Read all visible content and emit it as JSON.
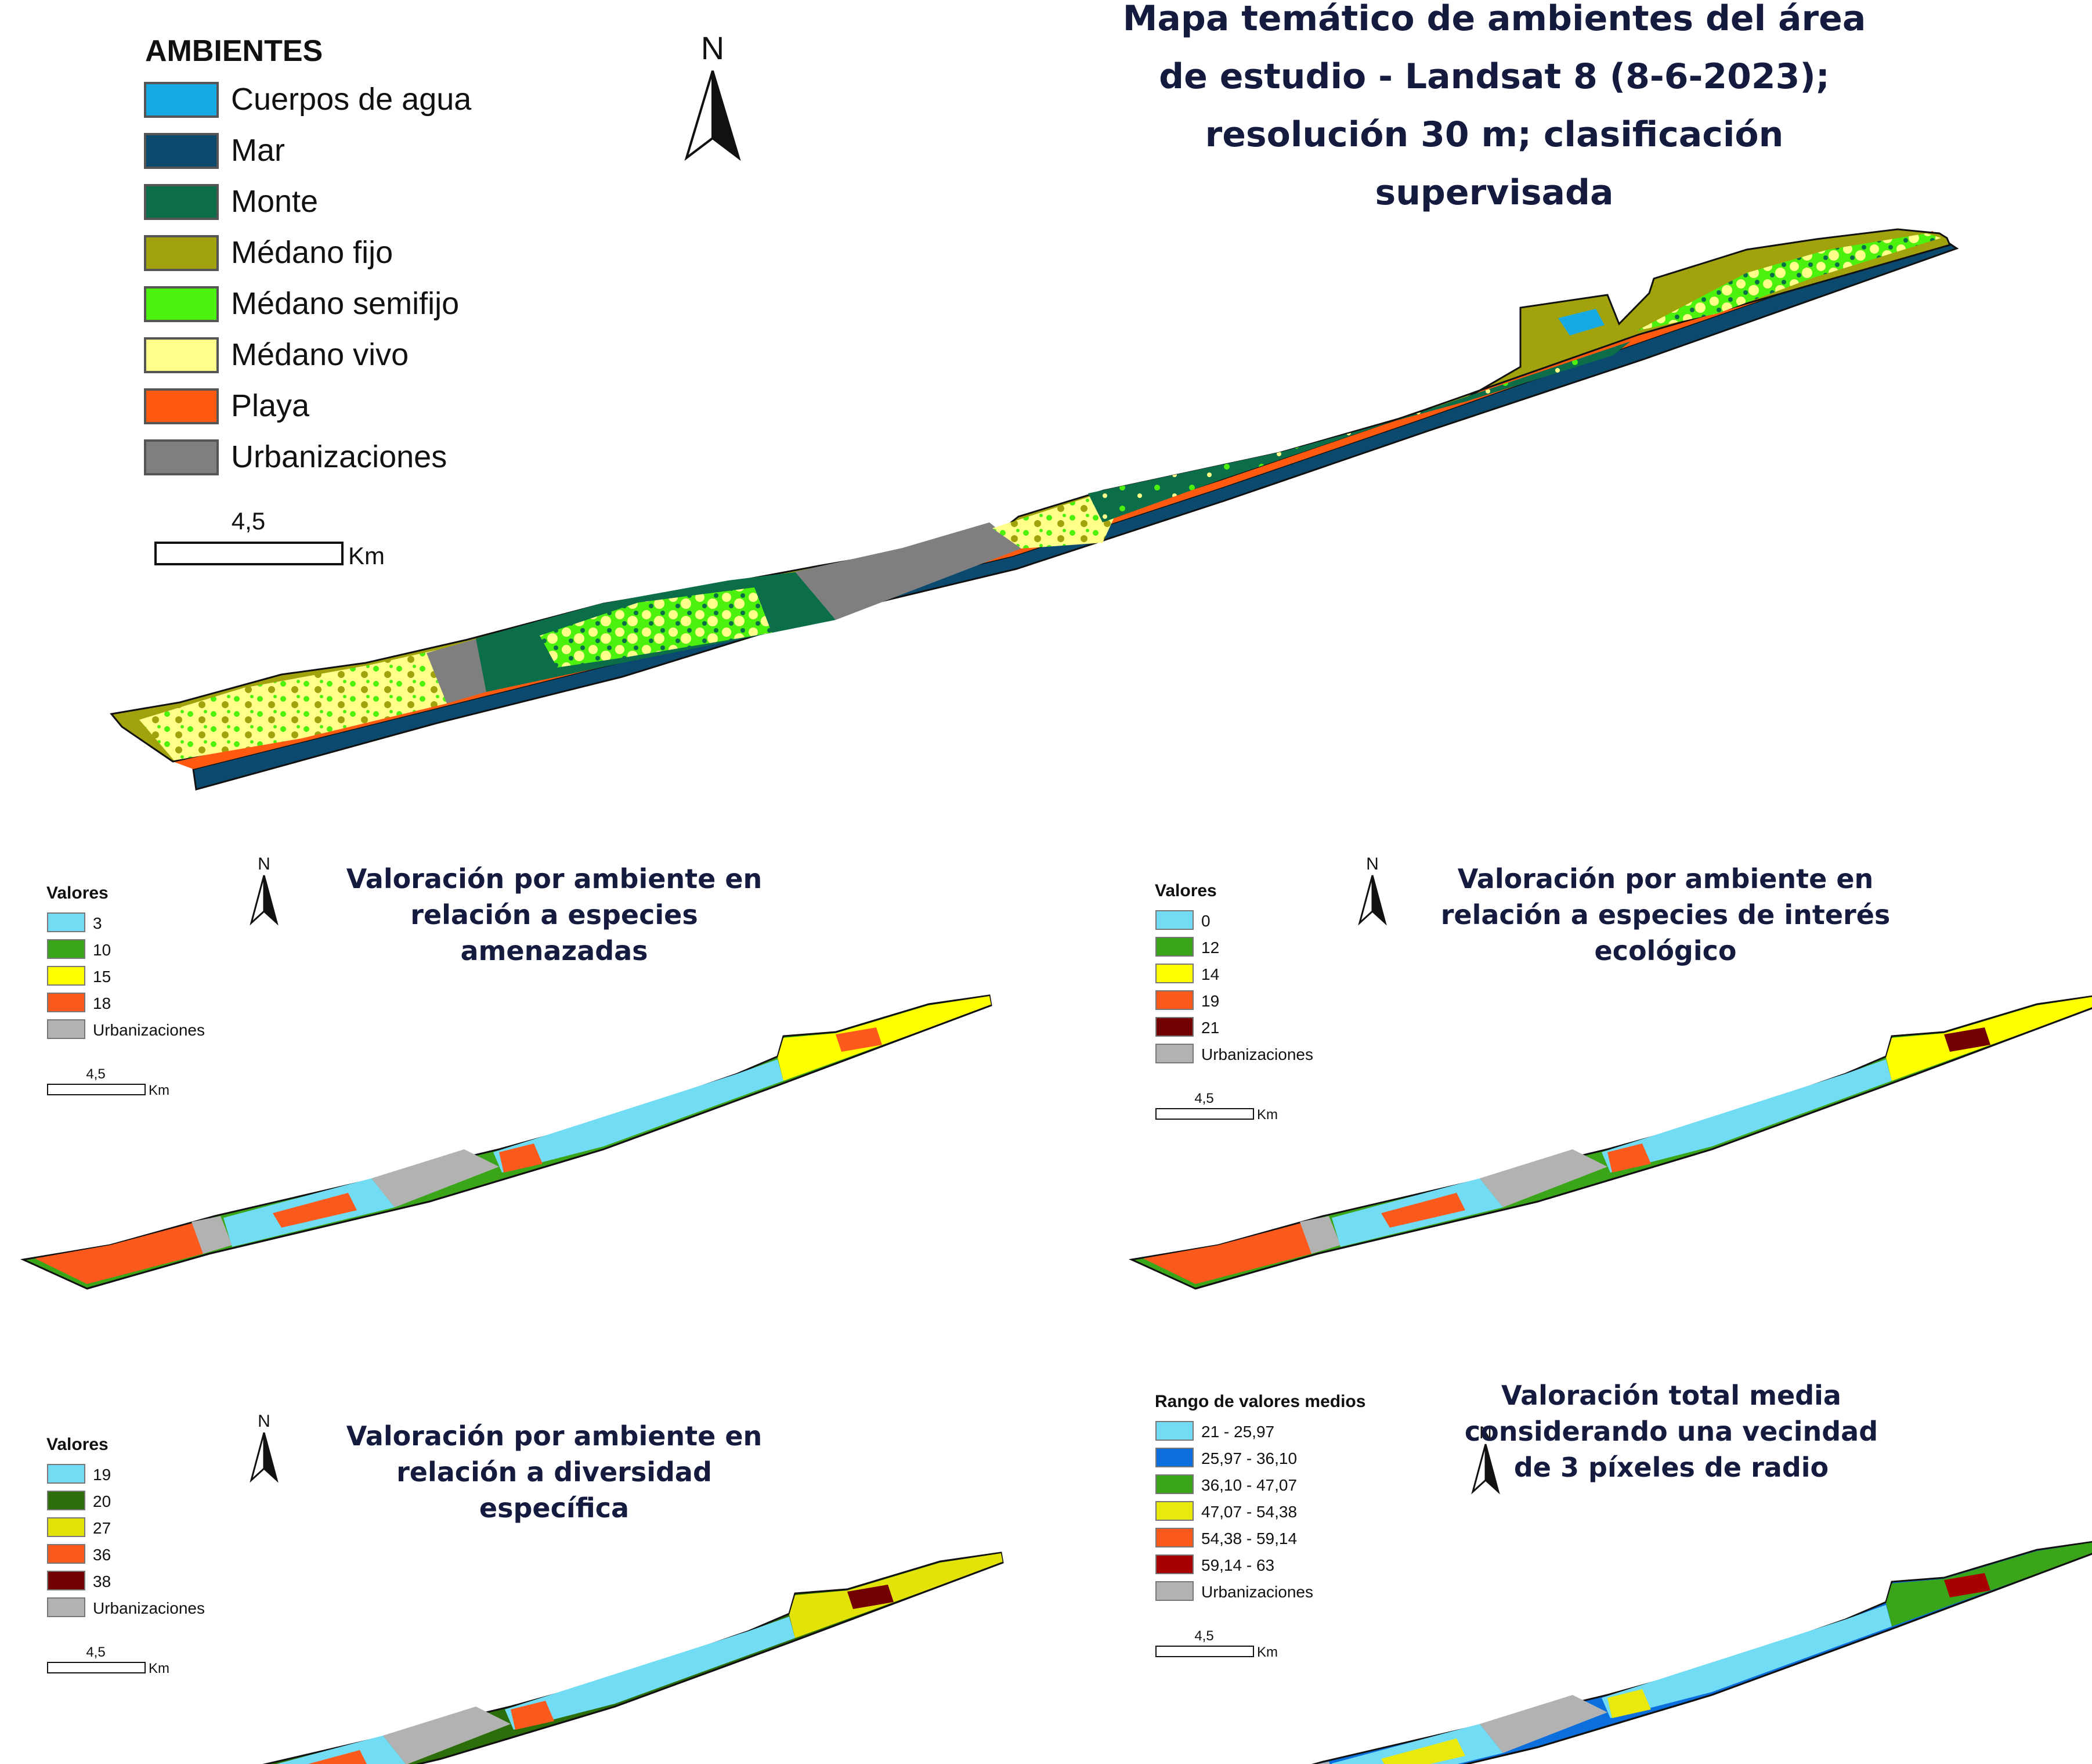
{
  "main": {
    "title_lines": [
      "Mapa temático de ambientes del área",
      "de estudio - Landsat 8 (8-6-2023);",
      "resolución 30 m; clasificación",
      "supervisada"
    ],
    "legend_title": "AMBIENTES",
    "legend": [
      {
        "label": "Cuerpos de agua",
        "color": "#16a9e2"
      },
      {
        "label": "Mar",
        "color": "#0b4a6e"
      },
      {
        "label": "Monte",
        "color": "#0c6e48"
      },
      {
        "label": "Médano fijo",
        "color": "#a1a20c"
      },
      {
        "label": "Médano semifijo",
        "color": "#4cf20e"
      },
      {
        "label": "Médano vivo",
        "color": "#ffff8a"
      },
      {
        "label": "Playa",
        "color": "#ff5a10"
      },
      {
        "label": "Urbanizaciones",
        "color": "#7f7f7f"
      }
    ],
    "scale_value": "4,5",
    "scale_unit": "Km",
    "north": "N"
  },
  "panels": [
    {
      "title_lines": [
        "Valoración por ambiente en",
        "relación a especies",
        "amenazadas"
      ],
      "legend_title": "Valores",
      "legend": [
        {
          "label": "3",
          "color": "#73dcf5"
        },
        {
          "label": "10",
          "color": "#3ba51a"
        },
        {
          "label": "15",
          "color": "#ffff00"
        },
        {
          "label": "18",
          "color": "#fc5a1c"
        },
        {
          "label": "Urbanizaciones",
          "color": "#b2b2b2"
        }
      ],
      "scale_value": "4,5",
      "scale_unit": "Km",
      "north": "N"
    },
    {
      "title_lines": [
        "Valoración por ambiente en",
        "relación a especies de interés",
        "ecológico"
      ],
      "legend_title": "Valores",
      "legend": [
        {
          "label": "0",
          "color": "#73dcf5"
        },
        {
          "label": "12",
          "color": "#3ba51a"
        },
        {
          "label": "14",
          "color": "#ffff00"
        },
        {
          "label": "19",
          "color": "#fc5a1c"
        },
        {
          "label": "21",
          "color": "#730000"
        },
        {
          "label": "Urbanizaciones",
          "color": "#b2b2b2"
        }
      ],
      "scale_value": "4,5",
      "scale_unit": "Km",
      "north": "N"
    },
    {
      "title_lines": [
        "Valoración por ambiente en",
        "relación a diversidad",
        "específica"
      ],
      "legend_title": "Valores",
      "legend": [
        {
          "label": "19",
          "color": "#73dcf5"
        },
        {
          "label": "20",
          "color": "#2b6e0a"
        },
        {
          "label": "27",
          "color": "#e3e30a"
        },
        {
          "label": "36",
          "color": "#fc5a1c"
        },
        {
          "label": "38",
          "color": "#730000"
        },
        {
          "label": "Urbanizaciones",
          "color": "#b2b2b2"
        }
      ],
      "scale_value": "4,5",
      "scale_unit": "Km",
      "north": "N"
    },
    {
      "title_lines": [
        "Valoración total media",
        "considerando una vecindad",
        "de 3 píxeles de radio"
      ],
      "legend_title": "Rango de valores medios",
      "legend": [
        {
          "label": "21 - 25,97",
          "color": "#73dcf5"
        },
        {
          "label": "25,97 - 36,10",
          "color": "#0a6edc"
        },
        {
          "label": "36,10 - 47,07",
          "color": "#3ba51a"
        },
        {
          "label": "47,07 - 54,38",
          "color": "#e9e90c"
        },
        {
          "label": "54,38 - 59,14",
          "color": "#fc5a1c"
        },
        {
          "label": "59,14 - 63",
          "color": "#a80000"
        },
        {
          "label": "Urbanizaciones",
          "color": "#b2b2b2"
        }
      ],
      "scale_value": "4,5",
      "scale_unit": "Km",
      "north": "N"
    }
  ]
}
